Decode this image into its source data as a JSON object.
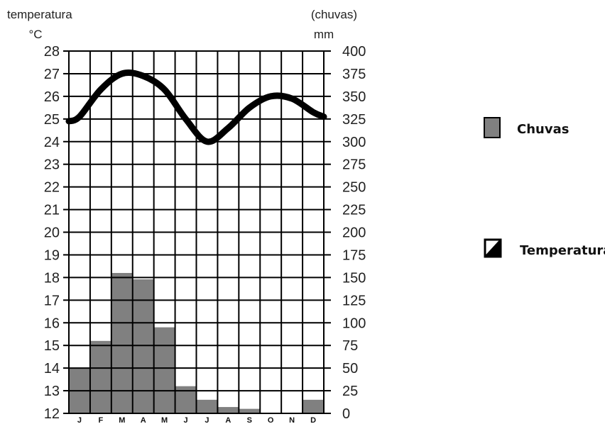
{
  "chart_data": {
    "type": "climograph",
    "categories": [
      "J",
      "F",
      "M",
      "A",
      "M",
      "J",
      "J",
      "A",
      "S",
      "O",
      "N",
      "D"
    ],
    "left_axis": {
      "title": "temperatura",
      "unit": "°C",
      "ylim": [
        12,
        28
      ],
      "ticks": [
        "28",
        "27",
        "26",
        "25",
        "24",
        "23",
        "22",
        "21",
        "20",
        "19",
        "18",
        "17",
        "16",
        "15",
        "14",
        "13",
        "12"
      ]
    },
    "right_axis": {
      "title": "(chuvas)",
      "unit": "mm",
      "ylim": [
        0,
        400
      ],
      "ticks": [
        "400",
        "375",
        "350",
        "325",
        "300",
        "275",
        "250",
        "225",
        "200",
        "175",
        "150",
        "125",
        "100",
        "75",
        "50",
        "25",
        "0"
      ]
    },
    "series": [
      {
        "name": "Chuvas",
        "type": "bar",
        "axis": "right",
        "color": "#808080",
        "values": [
          50,
          80,
          155,
          148,
          95,
          30,
          15,
          7,
          5,
          0,
          0,
          15
        ]
      },
      {
        "name": "Temperaturas",
        "type": "line",
        "axis": "left",
        "color": "#000000",
        "values": [
          25.1,
          26.3,
          27.0,
          26.9,
          26.3,
          25.0,
          24.0,
          24.6,
          25.5,
          26.0,
          25.9,
          25.3
        ]
      }
    ],
    "grid": true,
    "legend_position": "right"
  },
  "legend": {
    "items": [
      {
        "label": "Chuvas",
        "icon": "filled-square-icon"
      },
      {
        "label": "Temperaturas",
        "icon": "half-filled-square-icon"
      }
    ]
  }
}
